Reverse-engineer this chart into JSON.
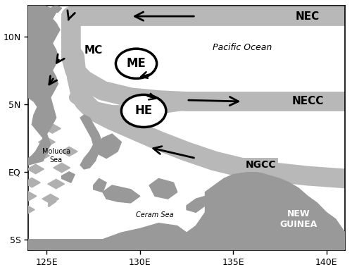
{
  "xlim": [
    124.0,
    141.0
  ],
  "ylim": [
    -5.8,
    12.3
  ],
  "xticks": [
    125,
    130,
    135,
    140
  ],
  "yticks": [
    -5,
    0,
    5,
    10
  ],
  "xticklabels": [
    "125E",
    "130E",
    "135E",
    "140E"
  ],
  "yticklabels": [
    "5S",
    "EQ",
    "5N",
    "10N"
  ],
  "figsize": [
    5.0,
    3.86
  ],
  "dpi": 100,
  "flow_color": "#b8b8b8",
  "flow_lw": 20,
  "land_color": "#999999",
  "bg_color": "white"
}
